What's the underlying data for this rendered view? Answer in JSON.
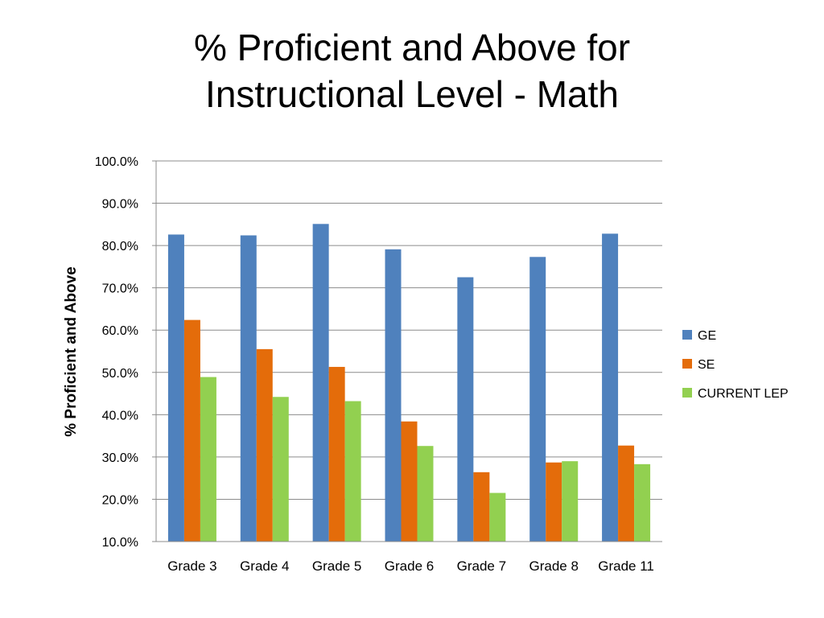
{
  "title": {
    "line1": "% Proficient and Above for",
    "line2": "Instructional Level - Math"
  },
  "chart_data": {
    "type": "bar",
    "title": "% Proficient and Above for Instructional Level - Math",
    "xlabel": "",
    "ylabel": "% Proficient and Above",
    "ylim": [
      10,
      100
    ],
    "yticks": [
      "10.0%",
      "20.0%",
      "30.0%",
      "40.0%",
      "50.0%",
      "60.0%",
      "70.0%",
      "80.0%",
      "90.0%",
      "100.0%"
    ],
    "grid": true,
    "legend_position": "right",
    "categories": [
      "Grade 3",
      "Grade 4",
      "Grade 5",
      "Grade 6",
      "Grade 7",
      "Grade 8",
      "Grade 11"
    ],
    "series": [
      {
        "name": "GE",
        "color": "#4f81bd",
        "values": [
          82.6,
          82.4,
          85.1,
          79.1,
          72.5,
          77.3,
          82.8
        ]
      },
      {
        "name": "SE",
        "color": "#e46c0a",
        "values": [
          62.4,
          55.5,
          51.3,
          38.4,
          26.4,
          28.7,
          32.7
        ]
      },
      {
        "name": "CURRENT LEP",
        "color": "#92d050",
        "values": [
          48.9,
          44.2,
          43.2,
          32.6,
          21.5,
          29.0,
          28.3
        ]
      }
    ]
  }
}
